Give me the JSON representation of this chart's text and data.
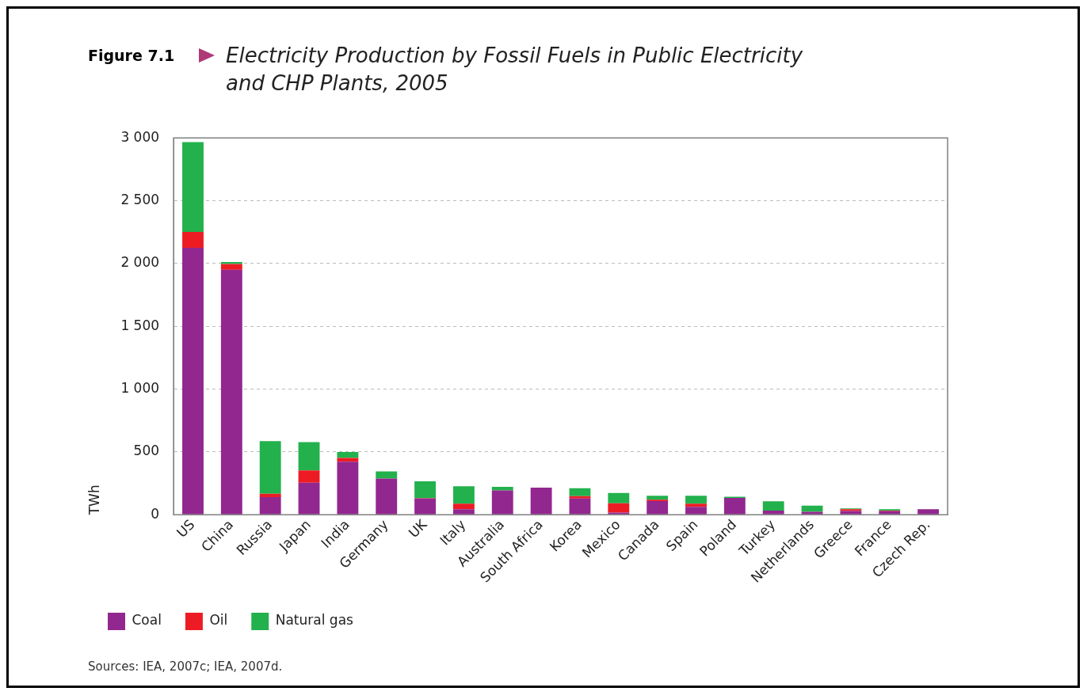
{
  "chart_data": {
    "type": "bar",
    "title": "Electricity Production by Fossil Fuels in Public Electricity and CHP Plants, 2005",
    "ylabel": "TWh",
    "annotations": [
      "Figure 7.1",
      "Sources: IEA, 2007c; IEA, 2007d."
    ],
    "categories": [
      "US",
      "China",
      "Russia",
      "Japan",
      "India",
      "Germany",
      "UK",
      "Italy",
      "Australia",
      "South Africa",
      "Korea",
      "Mexico",
      "Canada",
      "Spain",
      "Poland",
      "Turkey",
      "Netherlands",
      "Greece",
      "France",
      "Czech Rep."
    ],
    "stacked": true,
    "series": [
      {
        "name": "Coal",
        "color": "#92278f",
        "values": [
          2125,
          1950,
          140,
          255,
          423,
          288,
          129,
          44,
          194,
          216,
          129,
          18,
          109,
          63,
          135,
          33,
          24,
          30,
          29,
          44
        ]
      },
      {
        "name": "Oil",
        "color": "#ed1c24",
        "values": [
          127,
          46,
          28,
          98,
          29,
          0,
          3,
          44,
          0,
          0,
          20,
          74,
          11,
          25,
          0,
          0,
          0,
          15,
          4,
          0
        ]
      },
      {
        "name": "Natural gas",
        "color": "#22b14c",
        "values": [
          715,
          16,
          419,
          226,
          48,
          57,
          134,
          139,
          29,
          0,
          63,
          81,
          31,
          63,
          9,
          74,
          48,
          5,
          11,
          0
        ]
      }
    ],
    "ylim": [
      0,
      3000
    ],
    "yticks": [
      0,
      500,
      {
        "value": 1000,
        "label": "1 000"
      },
      {
        "value": 1500,
        "label": "1 500"
      },
      {
        "value": 2000,
        "label": "2 000"
      },
      {
        "value": 2500,
        "label": "2 500"
      },
      {
        "value": 3000,
        "label": "3 000"
      }
    ],
    "grid": "y",
    "legend": "bottom"
  }
}
